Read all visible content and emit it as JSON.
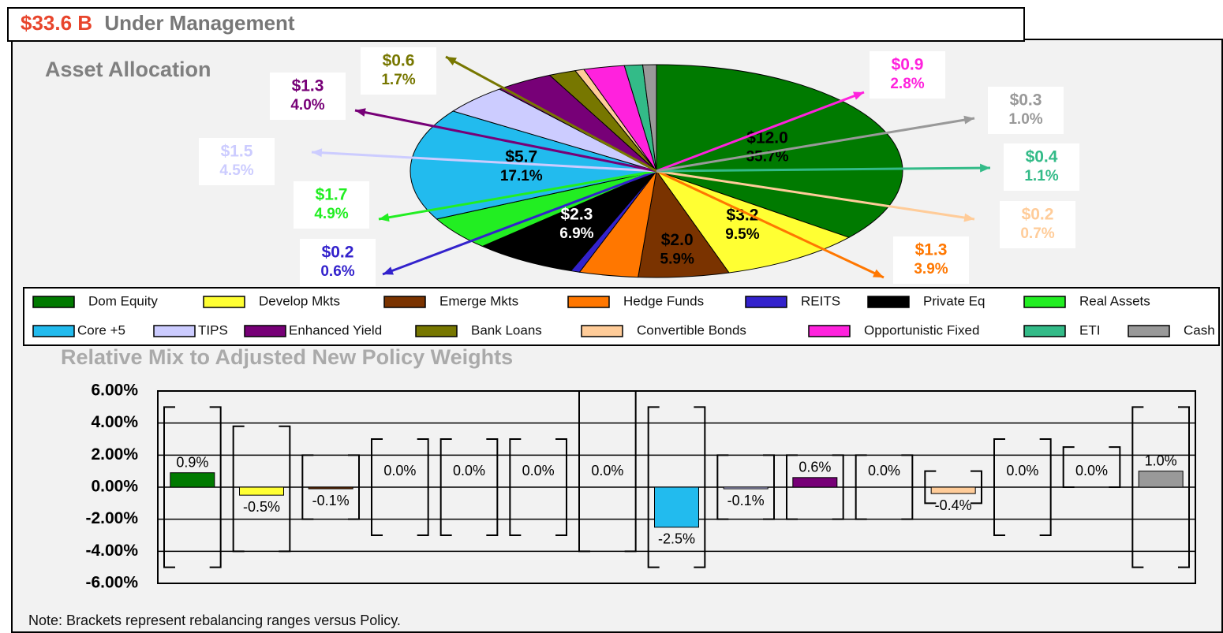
{
  "header": {
    "amount": "$33.6 B",
    "text": "Under Management"
  },
  "note": "Note: Brackets represent rebalancing ranges versus Policy.",
  "chart_data": [
    {
      "type": "pie",
      "title": "Asset Allocation",
      "categories": [
        "Dom Equity",
        "Develop Mkts",
        "Emerge Mkts",
        "Hedge Funds",
        "REITS",
        "Private Eq",
        "Real Assets",
        "Core +5",
        "TIPS",
        "Enhanced Yield",
        "Bank Loans",
        "Convertible Bonds",
        "Opportunistic Fixed",
        "ETI",
        "Cash"
      ],
      "values": [
        12.0,
        3.2,
        2.0,
        1.3,
        0.2,
        2.3,
        1.7,
        5.7,
        1.5,
        1.3,
        0.6,
        0.2,
        0.9,
        0.4,
        0.3
      ],
      "value_labels": [
        "$12.0",
        "$3.2",
        "$2.0",
        "$1.3",
        "$0.2",
        "$2.3",
        "$1.7",
        "$5.7",
        "$1.5",
        "$1.3",
        "$0.6",
        "$0.2",
        "$0.9",
        "$0.4",
        "$0.3"
      ],
      "percents": [
        35.7,
        9.5,
        5.9,
        3.9,
        0.6,
        6.9,
        4.9,
        17.1,
        4.5,
        4.0,
        1.7,
        0.7,
        2.8,
        1.1,
        1.0
      ],
      "percent_labels": [
        "35.7%",
        "9.5%",
        "5.9%",
        "3.9%",
        "0.6%",
        "6.9%",
        "4.9%",
        "17.1%",
        "4.5%",
        "4.0%",
        "1.7%",
        "0.7%",
        "2.8%",
        "1.1%",
        "1.0%"
      ],
      "colors": [
        "#007a00",
        "#ffff33",
        "#7a3300",
        "#ff7700",
        "#3322cc",
        "#000000",
        "#22ee22",
        "#22bbee",
        "#ccccff",
        "#770077",
        "#777700",
        "#ffcc99",
        "#ff22dd",
        "#33bb88",
        "#999999"
      ]
    },
    {
      "type": "bar",
      "title": "Relative Mix to Adjusted New Policy Weights",
      "values": [
        0.9,
        -0.5,
        -0.1,
        0.0,
        0.0,
        0.0,
        0.0,
        -2.5,
        -0.1,
        0.6,
        0.0,
        -0.4,
        0.0,
        0.0,
        1.0
      ],
      "value_labels": [
        "0.9%",
        "-0.5%",
        "-0.1%",
        "0.0%",
        "0.0%",
        "0.0%",
        "0.0%",
        "-2.5%",
        "-0.1%",
        "0.6%",
        "0.0%",
        "-0.4%",
        "0.0%",
        "0.0%",
        "1.0%"
      ],
      "ranges": [
        [
          -5,
          5
        ],
        [
          -4,
          3.8
        ],
        [
          -2,
          2
        ],
        [
          -3,
          3
        ],
        [
          -3,
          3
        ],
        [
          -3,
          3
        ],
        [
          -4,
          6
        ],
        [
          -5,
          5
        ],
        [
          -2,
          2
        ],
        [
          -2,
          2
        ],
        [
          -2,
          2
        ],
        [
          -1,
          1
        ],
        [
          -3,
          3
        ],
        [
          0,
          2.5
        ],
        [
          -5,
          5
        ]
      ],
      "ylim": [
        -6,
        6
      ],
      "yticks": [
        {
          "value": 6,
          "label": "6.00%"
        },
        {
          "value": 4,
          "label": "4.00%"
        },
        {
          "value": 2,
          "label": "2.00%"
        },
        {
          "value": 0,
          "label": "0.00%"
        },
        {
          "value": -2,
          "label": "-2.00%"
        },
        {
          "value": -4,
          "label": "-4.00%"
        },
        {
          "value": -6,
          "label": "-6.00%"
        }
      ],
      "grid": true
    }
  ]
}
